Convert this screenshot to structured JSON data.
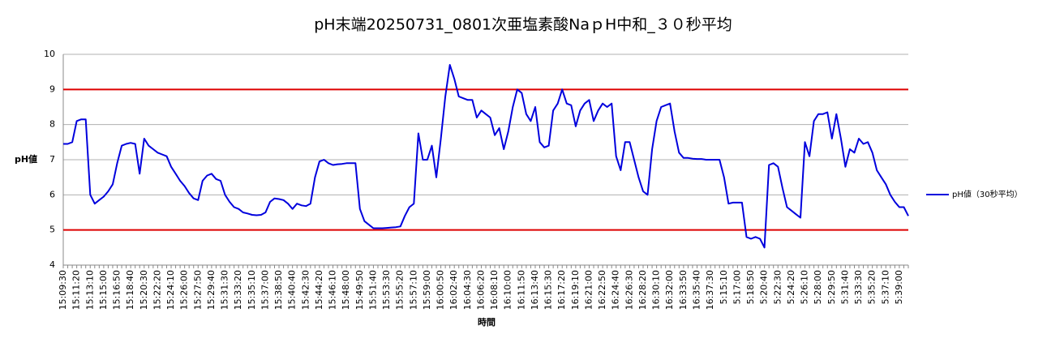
{
  "chart_data": {
    "type": "line",
    "title": "pH末端20250731_0801次亜塩素酸NaｐH中和_３０秒平均",
    "x_label": "時間",
    "y_label": "pH値",
    "categories": [
      "15:09:30",
      null,
      null,
      "15:11:20",
      null,
      null,
      "15:13:10",
      null,
      null,
      "15:15:00",
      null,
      null,
      "15:16:50",
      null,
      null,
      "15:18:40",
      null,
      null,
      "15:20:30",
      null,
      null,
      "15:22:20",
      null,
      null,
      "15:24:10",
      null,
      null,
      "15:26:00",
      null,
      null,
      "15:27:50",
      null,
      null,
      "15:29:40",
      null,
      null,
      "15:31:30",
      null,
      null,
      "15:33:20",
      null,
      null,
      "15:35:10",
      null,
      null,
      "15:37:00",
      null,
      null,
      "15:38:50",
      null,
      null,
      "15:40:40",
      null,
      null,
      "15:42:30",
      null,
      null,
      "15:44:20",
      null,
      null,
      "15:46:10",
      null,
      null,
      "15:48:00",
      null,
      null,
      "15:49:50",
      null,
      null,
      "15:51:40",
      null,
      null,
      "15:53:30",
      null,
      null,
      "15:55:20",
      null,
      null,
      "15:57:10",
      null,
      null,
      "15:59:00",
      null,
      null,
      "16:00:50",
      null,
      null,
      "16:02:40",
      null,
      null,
      "16:04:30",
      null,
      null,
      "16:06:20",
      null,
      null,
      "16:08:10",
      null,
      null,
      "16:10:00",
      null,
      null,
      "16:11:50",
      null,
      null,
      "16:13:40",
      null,
      null,
      "16:15:30",
      null,
      null,
      "16:17:20",
      null,
      null,
      "16:19:10",
      null,
      null,
      "16:21:00",
      null,
      null,
      "16:22:50",
      null,
      null,
      "16:24:40",
      null,
      null,
      "16:26:30",
      null,
      null,
      "16:28:20",
      null,
      null,
      "16:30:10",
      null,
      null,
      "16:32:00",
      null,
      null,
      "16:33:50",
      null,
      null,
      "16:35:40",
      null,
      null,
      "16:37:30",
      null,
      null,
      "5:15:10",
      null,
      null,
      "5:17:00",
      null,
      null,
      "5:18:50",
      null,
      null,
      "5:20:40",
      null,
      null,
      "5:22:30",
      null,
      null,
      "5:24:20",
      null,
      null,
      "5:26:10",
      null,
      null,
      "5:28:00",
      null,
      null,
      "5:29:50",
      null,
      null,
      "5:31:40",
      null,
      null,
      "5:33:30",
      null,
      null,
      "5:35:20",
      null,
      null,
      "5:37:10",
      null,
      null,
      "5:39:00",
      null,
      null
    ],
    "series": [
      {
        "name": "pH値（30秒平均）",
        "color": "#0000dd",
        "values": [
          7.45,
          7.45,
          7.5,
          8.1,
          8.15,
          8.15,
          6.0,
          5.75,
          5.85,
          5.95,
          6.1,
          6.3,
          6.9,
          7.4,
          7.45,
          7.48,
          7.45,
          6.6,
          7.6,
          7.4,
          7.3,
          7.2,
          7.15,
          7.1,
          6.8,
          6.6,
          6.4,
          6.25,
          6.05,
          5.9,
          5.85,
          6.4,
          6.55,
          6.6,
          6.45,
          6.4,
          6.0,
          5.8,
          5.65,
          5.6,
          5.5,
          5.47,
          5.43,
          5.42,
          5.43,
          5.5,
          5.8,
          5.9,
          5.88,
          5.85,
          5.75,
          5.6,
          5.75,
          5.7,
          5.68,
          5.75,
          6.5,
          6.95,
          7.0,
          6.9,
          6.85,
          6.87,
          6.88,
          6.9,
          6.9,
          6.9,
          5.6,
          5.25,
          5.15,
          5.05,
          5.05,
          5.05,
          5.06,
          5.07,
          5.08,
          5.1,
          5.4,
          5.65,
          5.75,
          7.75,
          7.0,
          7.0,
          7.4,
          6.5,
          7.6,
          8.8,
          9.7,
          9.3,
          8.8,
          8.75,
          8.7,
          8.7,
          8.2,
          8.4,
          8.3,
          8.2,
          7.7,
          7.9,
          7.3,
          7.8,
          8.5,
          9.0,
          8.9,
          8.3,
          8.1,
          8.5,
          7.5,
          7.35,
          7.4,
          8.4,
          8.6,
          9.0,
          8.6,
          8.55,
          7.95,
          8.4,
          8.6,
          8.7,
          8.1,
          8.4,
          8.6,
          8.5,
          8.6,
          7.1,
          6.7,
          7.5,
          7.5,
          7.0,
          6.5,
          6.1,
          6.0,
          7.3,
          8.1,
          8.5,
          8.55,
          8.6,
          7.8,
          7.2,
          7.05,
          7.05,
          7.03,
          7.02,
          7.02,
          7.0,
          7.0,
          7.0,
          7.0,
          6.5,
          5.75,
          5.78,
          5.78,
          5.78,
          4.8,
          4.75,
          4.8,
          4.75,
          4.5,
          6.85,
          6.9,
          6.8,
          6.2,
          5.65,
          5.55,
          5.45,
          5.35,
          7.5,
          7.1,
          8.1,
          8.3,
          8.3,
          8.35,
          7.6,
          8.3,
          7.6,
          6.8,
          7.3,
          7.2,
          7.6,
          7.45,
          7.5,
          7.2,
          6.7,
          6.5,
          6.3,
          6.0,
          5.8,
          5.65,
          5.65,
          5.4
        ]
      }
    ],
    "ylim": [
      4,
      10
    ],
    "yticks": [
      4,
      5,
      6,
      7,
      8,
      9,
      10
    ],
    "grid": true,
    "reference_lines": [
      5,
      9
    ],
    "reference_color": "#dd0000",
    "legend": "right"
  }
}
